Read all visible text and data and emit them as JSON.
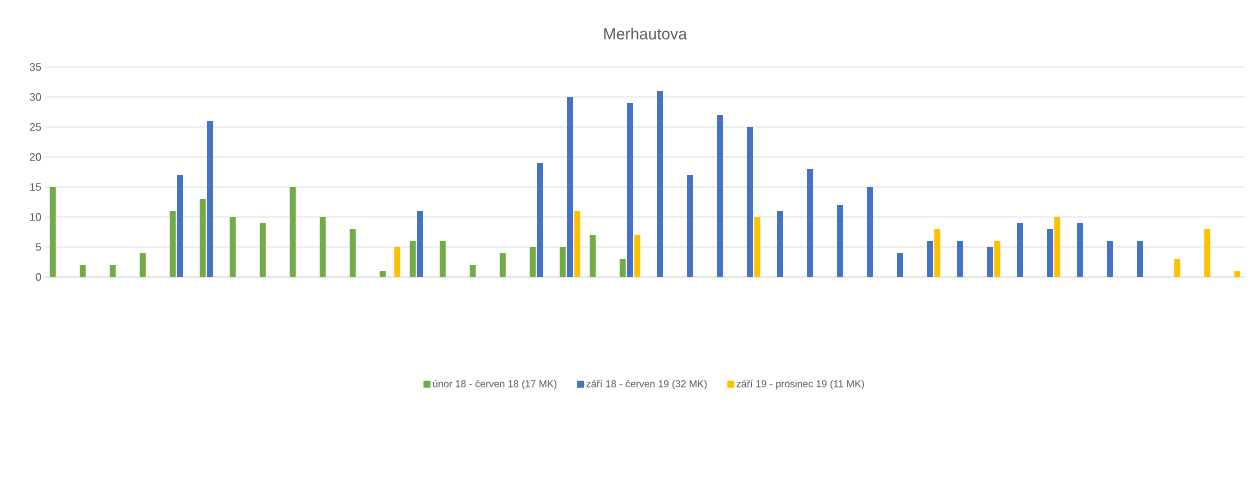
{
  "chart_data": {
    "type": "bar",
    "title": "Merhautova",
    "categories": [
      null,
      null,
      null,
      null,
      null,
      null,
      null,
      null,
      null,
      null,
      null,
      null,
      null,
      null,
      null,
      null,
      null,
      null,
      null,
      null,
      null,
      null,
      null,
      null,
      null,
      null,
      null,
      null,
      null,
      null,
      null,
      null,
      null,
      null,
      null,
      null,
      null,
      null,
      null,
      null
    ],
    "series": [
      {
        "name": "únor 18 - červen 18 (17 MK)",
        "color": "#70ad47",
        "values": [
          15,
          2,
          2,
          4,
          11,
          13,
          10,
          9,
          15,
          10,
          8,
          1,
          6,
          6,
          2,
          4,
          5,
          5,
          7,
          3,
          null,
          null,
          null,
          null,
          null,
          null,
          null,
          null,
          null,
          null,
          null,
          null,
          null,
          null,
          null,
          null,
          null,
          null,
          null,
          null
        ]
      },
      {
        "name": "září 18 - červen 19 (32 MK)",
        "color": "#4472c4",
        "values": [
          null,
          null,
          null,
          null,
          17,
          26,
          null,
          null,
          null,
          null,
          null,
          null,
          11,
          null,
          null,
          null,
          19,
          30,
          null,
          29,
          31,
          17,
          27,
          25,
          11,
          18,
          12,
          15,
          4,
          6,
          6,
          5,
          9,
          8,
          9,
          6,
          6,
          null,
          null,
          null
        ]
      },
      {
        "name": "září 19 - prosinec 19 (11 MK)",
        "color": "#ffc000",
        "values": [
          null,
          null,
          null,
          null,
          null,
          null,
          null,
          null,
          null,
          null,
          null,
          5,
          null,
          null,
          null,
          null,
          null,
          11,
          null,
          7,
          null,
          null,
          null,
          10,
          null,
          null,
          null,
          null,
          null,
          8,
          null,
          6,
          null,
          10,
          null,
          null,
          null,
          3,
          8,
          1
        ]
      }
    ],
    "ylim": [
      0,
      35
    ],
    "yticks": [
      0,
      5,
      10,
      15,
      20,
      25,
      30,
      35
    ],
    "grid": "y",
    "legend": "bottom"
  }
}
